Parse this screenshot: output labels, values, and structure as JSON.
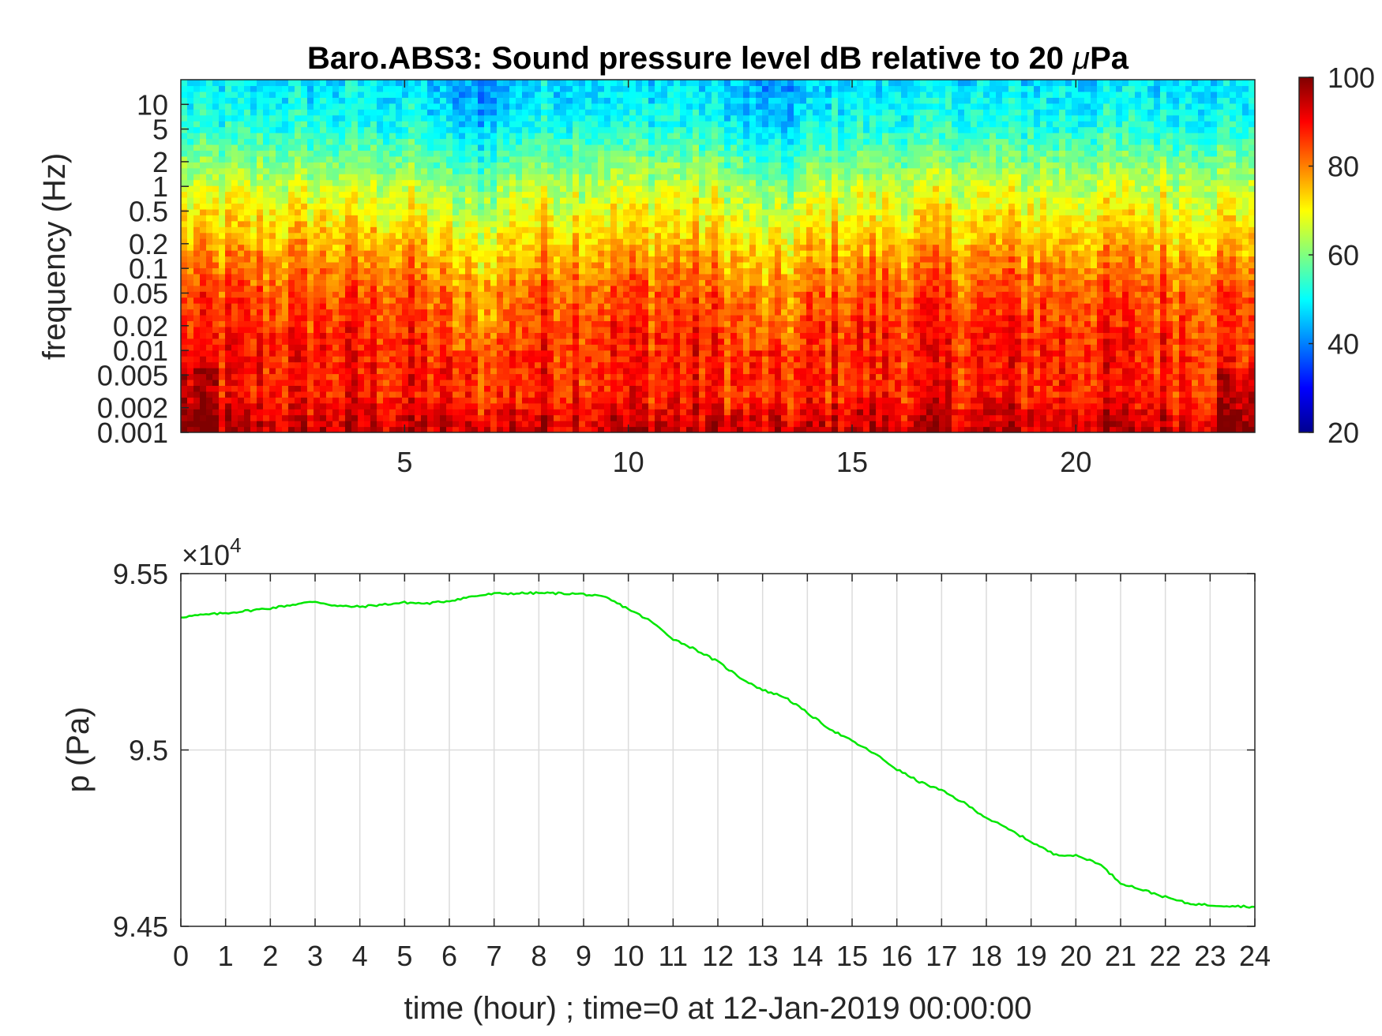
{
  "figure": {
    "title_prefix": "Baro.ABS3: Sound pressure level dB relative to 20 ",
    "title_mu": "μ",
    "title_suffix": "Pa"
  },
  "chart_data": [
    {
      "type": "heatmap",
      "title": "Baro.ABS3: Sound pressure level dB relative to 20 μPa",
      "xlabel": "",
      "ylabel": "frequency (Hz)",
      "xlim": [
        0,
        24
      ],
      "ylim": [
        0.001,
        20
      ],
      "y_scale": "log",
      "x_ticks": [
        5,
        10,
        15,
        20
      ],
      "y_ticks": [
        0.001,
        0.002,
        0.005,
        0.01,
        0.02,
        0.05,
        0.1,
        0.2,
        0.5,
        1,
        2,
        5,
        10
      ],
      "y_tick_labels": [
        "0.001",
        "0.002",
        "0.005",
        "0.01",
        "0.02",
        "0.05",
        "0.1",
        "0.2",
        "0.5",
        "1",
        "2",
        "5",
        "10"
      ],
      "colormap": "jet",
      "colorbar": {
        "range": [
          20,
          100
        ],
        "ticks": [
          20,
          40,
          60,
          80,
          100
        ]
      },
      "level_profile_db": {
        "frequency_hz": [
          0.001,
          0.003,
          0.01,
          0.05,
          0.2,
          0.5,
          1,
          2,
          5,
          10,
          20
        ],
        "level": [
          95,
          88,
          88,
          84,
          76,
          70,
          66,
          60,
          53,
          50,
          48
        ]
      },
      "quieter_hours": [
        6.5,
        13.2
      ]
    },
    {
      "type": "line",
      "xlabel": "time (hour) ; time=0 at 12-Jan-2019 00:00:00",
      "ylabel": "p (Pa)",
      "y_multiplier_label": "×10",
      "y_multiplier_exp": "4",
      "xlim": [
        0,
        24
      ],
      "ylim": [
        9.45,
        9.55
      ],
      "x_ticks": [
        0,
        1,
        2,
        3,
        4,
        5,
        6,
        7,
        8,
        9,
        10,
        11,
        12,
        13,
        14,
        15,
        16,
        17,
        18,
        19,
        20,
        21,
        22,
        23,
        24
      ],
      "y_ticks": [
        9.45,
        9.5,
        9.55
      ],
      "y_tick_labels": [
        "9.45",
        "9.5",
        "9.55"
      ],
      "grid": true,
      "series": [
        {
          "color": "#00e600",
          "x": [
            0,
            0.5,
            1,
            1.5,
            2,
            2.5,
            3,
            3.5,
            4,
            4.5,
            5,
            5.5,
            6,
            6.5,
            7,
            7.5,
            8,
            8.5,
            9,
            9.5,
            10,
            10.5,
            11,
            11.5,
            12,
            12.5,
            13,
            13.5,
            14,
            14.5,
            15,
            15.5,
            16,
            16.5,
            17,
            17.5,
            18,
            18.5,
            19,
            19.5,
            20,
            20.5,
            21,
            21.5,
            22,
            22.5,
            23,
            23.5,
            24
          ],
          "y": [
            9.5377,
            9.5383,
            9.5388,
            9.5395,
            9.5402,
            9.5412,
            9.5421,
            9.5408,
            9.5406,
            9.5412,
            9.5418,
            9.5415,
            9.5423,
            9.5435,
            9.5443,
            9.5444,
            9.5445,
            9.5444,
            9.5442,
            9.5432,
            9.54,
            9.5365,
            9.5315,
            9.5285,
            9.525,
            9.5205,
            9.517,
            9.515,
            9.5105,
            9.506,
            9.5025,
            9.499,
            9.4945,
            9.491,
            9.4885,
            9.485,
            9.4808,
            9.4775,
            9.474,
            9.4705,
            9.47,
            9.468,
            9.4623,
            9.4603,
            9.4583,
            9.4565,
            9.456,
            9.4558,
            9.4555
          ]
        }
      ]
    }
  ]
}
